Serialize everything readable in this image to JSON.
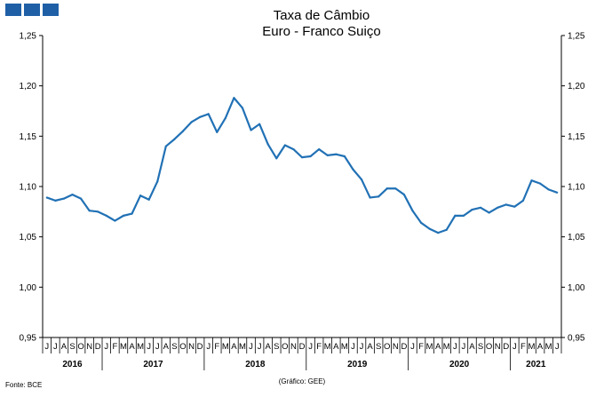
{
  "logo": {
    "color": "#1f5fa6",
    "squares": 3
  },
  "footer": {
    "source": "Fonte: BCE",
    "credit": "(Gráfico: GEE)"
  },
  "chart_data": {
    "type": "line",
    "title": "Taxa de Câmbio",
    "subtitle": "Euro - Franco Suiço",
    "xlabel": "",
    "ylabel": "",
    "ylim": [
      0.95,
      1.25
    ],
    "yticks": [
      "0,95",
      "1,00",
      "1,05",
      "1,10",
      "1,15",
      "1,20",
      "1,25"
    ],
    "y_tick_values": [
      0.95,
      1.0,
      1.05,
      1.1,
      1.15,
      1.2,
      1.25
    ],
    "secondary_axis": true,
    "grid": false,
    "line_color": "#2171b5",
    "categories": [
      "J",
      "J",
      "A",
      "S",
      "O",
      "N",
      "D",
      "J",
      "F",
      "M",
      "A",
      "M",
      "J",
      "J",
      "A",
      "S",
      "O",
      "N",
      "D",
      "J",
      "F",
      "M",
      "A",
      "M",
      "J",
      "J",
      "A",
      "S",
      "O",
      "N",
      "D",
      "J",
      "F",
      "M",
      "A",
      "M",
      "J",
      "J",
      "A",
      "S",
      "O",
      "N",
      "D",
      "J",
      "F",
      "M",
      "A",
      "M",
      "J",
      "J",
      "A",
      "S",
      "O",
      "N",
      "D",
      "J",
      "F",
      "M",
      "A",
      "M",
      "J"
    ],
    "year_groups": [
      {
        "label": "2016",
        "count": 7
      },
      {
        "label": "2017",
        "count": 12
      },
      {
        "label": "2018",
        "count": 12
      },
      {
        "label": "2019",
        "count": 12
      },
      {
        "label": "2020",
        "count": 12
      },
      {
        "label": "2021",
        "count": 6
      }
    ],
    "series": [
      {
        "values": [
          1.089,
          1.086,
          1.088,
          1.092,
          1.088,
          1.076,
          1.075,
          1.071,
          1.066,
          1.071,
          1.073,
          1.091,
          1.087,
          1.105,
          1.14,
          1.147,
          1.155,
          1.164,
          1.169,
          1.172,
          1.154,
          1.168,
          1.188,
          1.178,
          1.156,
          1.162,
          1.142,
          1.128,
          1.141,
          1.137,
          1.129,
          1.13,
          1.137,
          1.131,
          1.132,
          1.13,
          1.117,
          1.107,
          1.089,
          1.09,
          1.098,
          1.098,
          1.092,
          1.076,
          1.064,
          1.058,
          1.054,
          1.057,
          1.071,
          1.071,
          1.077,
          1.079,
          1.074,
          1.079,
          1.082,
          1.08,
          1.086,
          1.106,
          1.103,
          1.097,
          1.094
        ]
      }
    ]
  }
}
